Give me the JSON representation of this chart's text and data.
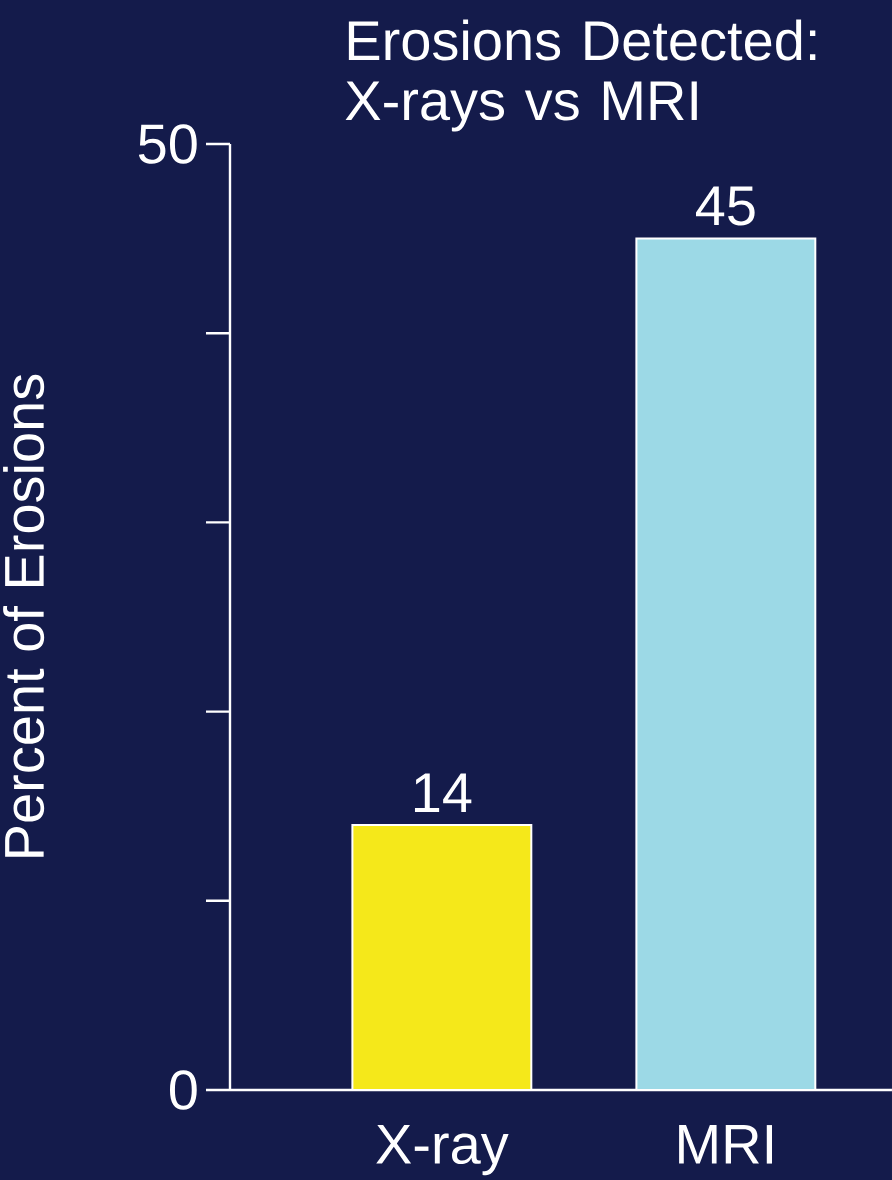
{
  "chart_data": {
    "type": "bar",
    "title": "Erosions Detected: X-rays vs MRI",
    "ylabel": "Percent of Erosions",
    "categories": [
      "X-ray",
      "MRI"
    ],
    "values": [
      14,
      45
    ],
    "colors": [
      "#f5e81a",
      "#9cd9e6"
    ],
    "ylim": [
      0,
      50
    ],
    "yticks": [
      0,
      {
        "value": 10,
        "label": null
      },
      {
        "value": 20,
        "label": null
      },
      {
        "value": 30,
        "label": null
      },
      {
        "value": 40,
        "label": null
      },
      50
    ],
    "data_labels": true,
    "grid": false
  }
}
